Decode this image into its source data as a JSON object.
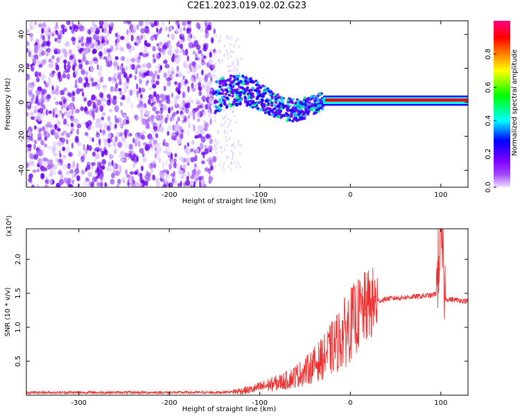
{
  "title": "C2E1.2023.019.02.02.G23",
  "chart_data": [
    {
      "type": "heatmap",
      "title": "C2E1.2023.019.02.02.G23",
      "xlabel": "Height of straight line (km)",
      "ylabel": "Frequency (Hz)",
      "xlim": [
        -358,
        130
      ],
      "ylim": [
        -50,
        48
      ],
      "x_ticks": [
        -300,
        -200,
        -100,
        0,
        100
      ],
      "y_ticks": [
        -40,
        -20,
        0,
        20,
        40
      ],
      "colorbar": {
        "label": "Normalized spectral amplitude",
        "range": [
          0,
          1
        ],
        "ticks": [
          0.0,
          0.2,
          0.4,
          0.6,
          0.8
        ],
        "colors": [
          "#e6d2ff",
          "#7b00ff",
          "#0000ff",
          "#00ffff",
          "#00ff00",
          "#ffff00",
          "#ff8000",
          "#ff0000",
          "#ff0080"
        ]
      },
      "regions": [
        {
          "x": [
            -358,
            -150
          ],
          "y": [
            -50,
            48
          ],
          "amplitude": 0.12,
          "description": "diffuse purple scatter"
        },
        {
          "x": [
            -150,
            -120
          ],
          "y": [
            -40,
            40
          ],
          "amplitude": 0.03
        },
        {
          "x": [
            -150,
            -30
          ],
          "y": [
            -12,
            14
          ],
          "amplitude": 0.35
        },
        {
          "x": [
            -30,
            130
          ],
          "y": [
            -2,
            4
          ],
          "amplitude": 0.9
        }
      ]
    },
    {
      "type": "line",
      "xlabel": "Height of straight line (km)",
      "ylabel": "SNR (10 * v/v)",
      "y_multiplier": "(x10⁴)",
      "xlim": [
        -358,
        130
      ],
      "ylim": [
        0,
        2.45
      ],
      "x_ticks": [
        -300,
        -200,
        -100,
        0,
        100
      ],
      "y_ticks": [
        0.5,
        1.0,
        1.5,
        2.0
      ],
      "color": "#ee3030",
      "series": [
        {
          "x": [
            -358,
            -300,
            -250,
            -200,
            -150,
            -130,
            -110,
            -90,
            -70,
            -50,
            -40,
            -30,
            -20,
            -10,
            0,
            10,
            20,
            30,
            40,
            60,
            80,
            90,
            95,
            100,
            105,
            110,
            120,
            130
          ],
          "y": [
            0.04,
            0.04,
            0.04,
            0.04,
            0.04,
            0.05,
            0.08,
            0.15,
            0.22,
            0.35,
            0.45,
            0.55,
            0.7,
            0.85,
            1.05,
            1.2,
            1.32,
            1.38,
            1.42,
            1.44,
            1.46,
            1.47,
            1.5,
            2.45,
            1.42,
            1.41,
            1.4,
            1.38
          ]
        }
      ]
    }
  ]
}
